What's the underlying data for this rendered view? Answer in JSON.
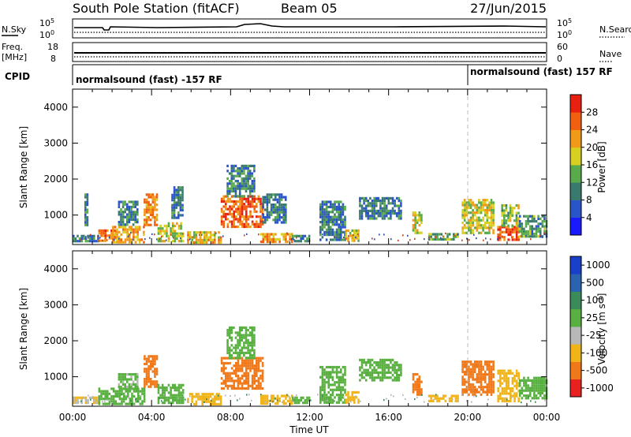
{
  "header": {
    "station": "South Pole Station (fitACF)",
    "beam": "Beam 05",
    "date": "27/Jun/2015"
  },
  "aux": {
    "nsky_label": "N.Sky",
    "nsky_top": "10^5",
    "nsky_bottom": "10^0",
    "freq_label": "Freq.",
    "freq_unit": "[MHz]",
    "freq_top": "18",
    "freq_bottom": "8",
    "nsearch_label": "N.Search",
    "nsearch_top": "10^5",
    "nsearch_bottom": "10^0",
    "nave_label": "Nave",
    "nave_top": "60",
    "nave_bottom": "0",
    "cpid_label": "CPID",
    "cpid_segments": [
      {
        "text": "normalsound (fast) -157 RF",
        "start_hour": 0
      },
      {
        "text": "normalsound (fast) 157 RF",
        "start_hour": 20
      }
    ]
  },
  "chart_data": [
    {
      "type": "heatmap",
      "panel": "power",
      "ylabel": "Slant Range [km]",
      "ylim": [
        180,
        4500
      ],
      "yticks": [
        1000,
        2000,
        3000,
        4000
      ],
      "xlim": [
        0,
        24
      ],
      "colorbar": {
        "label": "Power [dB]",
        "range": [
          0,
          32
        ],
        "ticks": [
          "4",
          "8",
          "12",
          "16",
          "20",
          "24",
          "28"
        ],
        "colors": [
          "#1a1aff",
          "#2a55c8",
          "#3a7a6e",
          "#58aa4a",
          "#d8d020",
          "#f09a18",
          "#f06010",
          "#e82010"
        ]
      },
      "echo_regions": [
        {
          "t0": 0.0,
          "t1": 1.3,
          "r0": 250,
          "r1": 450,
          "value": 9
        },
        {
          "t0": 0.6,
          "t1": 0.8,
          "r0": 700,
          "r1": 1600,
          "value": 9
        },
        {
          "t0": 1.3,
          "t1": 2.2,
          "r0": 250,
          "r1": 600,
          "value": 25
        },
        {
          "t0": 2.0,
          "t1": 3.6,
          "r0": 250,
          "r1": 700,
          "value": 21
        },
        {
          "t0": 2.3,
          "t1": 3.3,
          "r0": 700,
          "r1": 1400,
          "value": 10
        },
        {
          "t0": 3.6,
          "t1": 4.3,
          "r0": 700,
          "r1": 1600,
          "value": 23
        },
        {
          "t0": 4.3,
          "t1": 5.6,
          "r0": 250,
          "r1": 800,
          "value": 17
        },
        {
          "t0": 5.0,
          "t1": 5.6,
          "r0": 900,
          "r1": 1800,
          "value": 9
        },
        {
          "t0": 5.8,
          "t1": 7.5,
          "r0": 250,
          "r1": 550,
          "value": 20
        },
        {
          "t0": 7.5,
          "t1": 9.6,
          "r0": 650,
          "r1": 1550,
          "value": 26
        },
        {
          "t0": 7.8,
          "t1": 9.2,
          "r0": 1550,
          "r1": 2400,
          "value": 10
        },
        {
          "t0": 9.5,
          "t1": 11.1,
          "r0": 250,
          "r1": 500,
          "value": 23
        },
        {
          "t0": 9.6,
          "t1": 10.8,
          "r0": 800,
          "r1": 1600,
          "value": 9
        },
        {
          "t0": 11.1,
          "t1": 12.0,
          "r0": 250,
          "r1": 450,
          "value": 11
        },
        {
          "t0": 12.5,
          "t1": 13.8,
          "r0": 300,
          "r1": 1400,
          "value": 9
        },
        {
          "t0": 13.8,
          "t1": 14.5,
          "r0": 250,
          "r1": 600,
          "value": 19
        },
        {
          "t0": 14.5,
          "t1": 16.6,
          "r0": 900,
          "r1": 1500,
          "value": 10
        },
        {
          "t0": 17.2,
          "t1": 17.7,
          "r0": 500,
          "r1": 1100,
          "value": 18
        },
        {
          "t0": 18.0,
          "t1": 19.5,
          "r0": 300,
          "r1": 500,
          "value": 13
        },
        {
          "t0": 19.7,
          "t1": 21.3,
          "r0": 500,
          "r1": 1450,
          "value": 18
        },
        {
          "t0": 21.5,
          "t1": 22.6,
          "r0": 300,
          "r1": 700,
          "value": 27
        },
        {
          "t0": 21.7,
          "t1": 22.6,
          "r0": 700,
          "r1": 1300,
          "value": 16
        },
        {
          "t0": 22.6,
          "t1": 24.0,
          "r0": 400,
          "r1": 1000,
          "value": 12
        }
      ]
    },
    {
      "type": "heatmap",
      "panel": "velocity",
      "ylabel": "Slant Range [km]",
      "ylim": [
        180,
        4500
      ],
      "yticks": [
        1000,
        2000,
        3000,
        4000
      ],
      "xlim": [
        0,
        24
      ],
      "xlabel": "Time UT",
      "xticks": [
        "00:00",
        "04:00",
        "08:00",
        "12:00",
        "16:00",
        "20:00",
        "00:00"
      ],
      "colorbar": {
        "label": "Velocity [m s^-1]",
        "ticks": [
          "1000",
          "500",
          "100",
          "25",
          "-25",
          "-100",
          "-500",
          "-1000"
        ],
        "colors": [
          "#1a3fc8",
          "#2a63b0",
          "#3a8a5a",
          "#58b040",
          "#b8b8b8",
          "#f0b418",
          "#f07818",
          "#e82020"
        ]
      },
      "echo_regions": [
        {
          "t0": 0.0,
          "t1": 1.3,
          "r0": 250,
          "r1": 450,
          "value": -25
        },
        {
          "t0": 1.3,
          "t1": 3.6,
          "r0": 250,
          "r1": 700,
          "value": 60
        },
        {
          "t0": 2.3,
          "t1": 3.3,
          "r0": 700,
          "r1": 1100,
          "value": 30
        },
        {
          "t0": 3.6,
          "t1": 4.3,
          "r0": 700,
          "r1": 1600,
          "value": -300
        },
        {
          "t0": 4.3,
          "t1": 5.6,
          "r0": 250,
          "r1": 800,
          "value": 60
        },
        {
          "t0": 5.8,
          "t1": 7.5,
          "r0": 250,
          "r1": 550,
          "value": -60
        },
        {
          "t0": 7.5,
          "t1": 9.6,
          "r0": 650,
          "r1": 1550,
          "value": -400
        },
        {
          "t0": 7.8,
          "t1": 9.2,
          "r0": 1550,
          "r1": 2400,
          "value": 60
        },
        {
          "t0": 9.5,
          "t1": 11.1,
          "r0": 250,
          "r1": 500,
          "value": -60
        },
        {
          "t0": 11.1,
          "t1": 12.0,
          "r0": 250,
          "r1": 450,
          "value": 60
        },
        {
          "t0": 12.5,
          "t1": 13.8,
          "r0": 300,
          "r1": 1300,
          "value": 60
        },
        {
          "t0": 13.8,
          "t1": 14.5,
          "r0": 300,
          "r1": 600,
          "value": -60
        },
        {
          "t0": 14.5,
          "t1": 16.6,
          "r0": 900,
          "r1": 1500,
          "value": 60
        },
        {
          "t0": 17.2,
          "t1": 17.7,
          "r0": 500,
          "r1": 1100,
          "value": -300
        },
        {
          "t0": 18.0,
          "t1": 19.5,
          "r0": 300,
          "r1": 500,
          "value": -60
        },
        {
          "t0": 19.7,
          "t1": 21.3,
          "r0": 500,
          "r1": 1450,
          "value": -300
        },
        {
          "t0": 21.5,
          "t1": 22.6,
          "r0": 300,
          "r1": 1200,
          "value": -60
        },
        {
          "t0": 22.6,
          "t1": 24.0,
          "r0": 400,
          "r1": 1000,
          "value": 60
        }
      ]
    }
  ]
}
